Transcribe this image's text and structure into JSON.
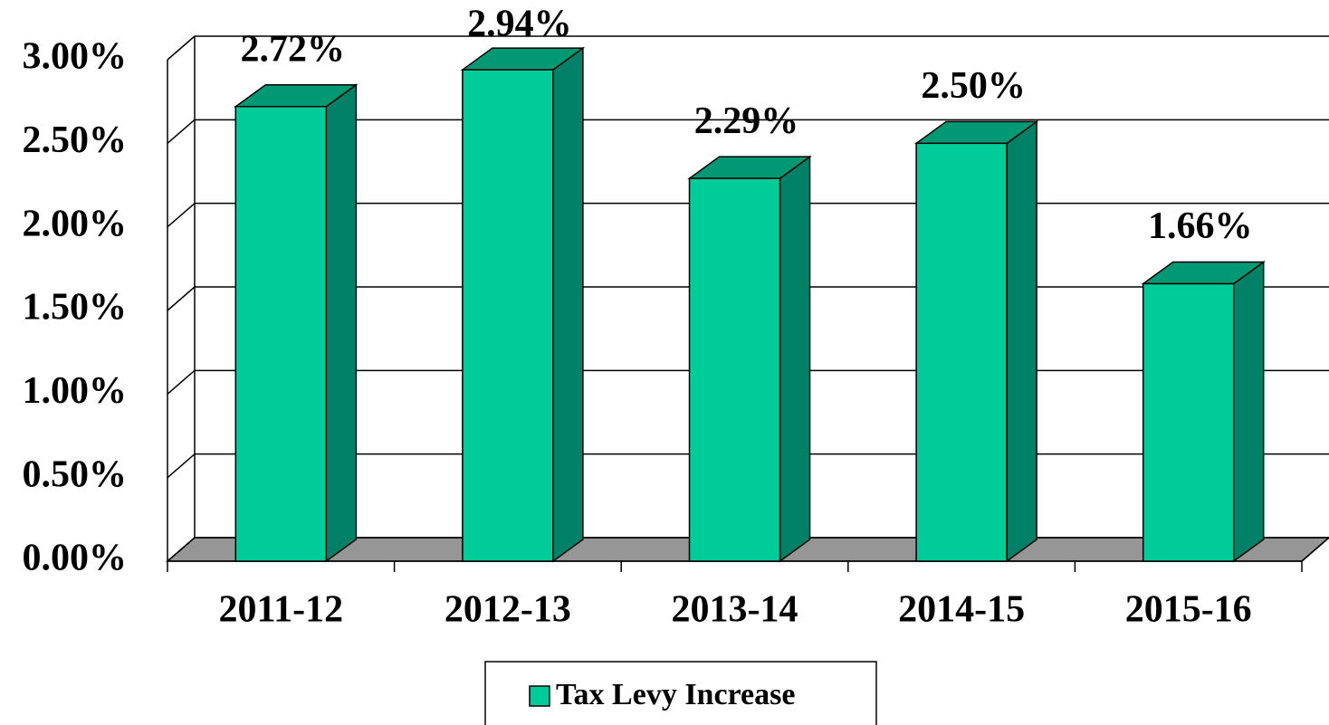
{
  "chart_data": {
    "type": "bar3d",
    "categories": [
      "2011-12",
      "2012-13",
      "2013-14",
      "2014-15",
      "2015-16"
    ],
    "series": [
      {
        "name": "Tax Levy Increase",
        "color": "#00CC99",
        "values": [
          2.72,
          2.94,
          2.29,
          2.5,
          1.66
        ],
        "value_labels": [
          "2.72%",
          "2.94%",
          "2.29%",
          "2.50%",
          "1.66%"
        ]
      }
    ],
    "ylim": [
      0,
      3
    ],
    "yticks": [
      {
        "value": 0,
        "label": "0.00%"
      },
      {
        "value": 0.5,
        "label": "0.50%"
      },
      {
        "value": 1,
        "label": "1.00%"
      },
      {
        "value": 1.5,
        "label": "1.50%"
      },
      {
        "value": 2,
        "label": "2.00%"
      },
      {
        "value": 2.5,
        "label": "2.50%"
      },
      {
        "value": 3,
        "label": "3.00%"
      }
    ],
    "grid": true,
    "legend": "bottom"
  }
}
